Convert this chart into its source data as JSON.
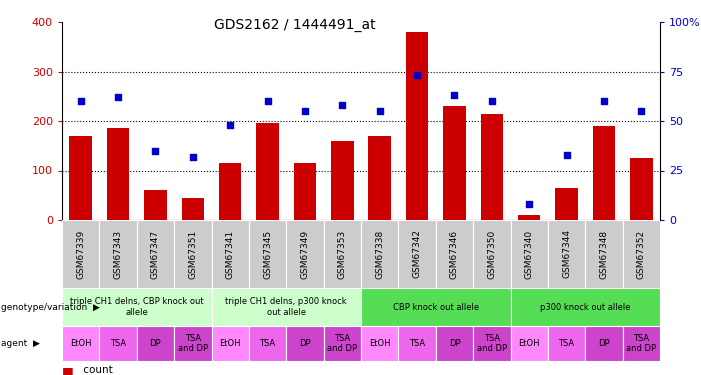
{
  "title": "GDS2162 / 1444491_at",
  "samples": [
    "GSM67339",
    "GSM67343",
    "GSM67347",
    "GSM67351",
    "GSM67341",
    "GSM67345",
    "GSM67349",
    "GSM67353",
    "GSM67338",
    "GSM67342",
    "GSM67346",
    "GSM67350",
    "GSM67340",
    "GSM67344",
    "GSM67348",
    "GSM67352"
  ],
  "counts": [
    170,
    185,
    60,
    45,
    115,
    195,
    115,
    160,
    170,
    380,
    230,
    215,
    10,
    65,
    190,
    125
  ],
  "percentiles": [
    60,
    62,
    35,
    32,
    48,
    60,
    55,
    58,
    55,
    73,
    63,
    60,
    8,
    33,
    60,
    55
  ],
  "ylim_left": [
    0,
    400
  ],
  "ylim_right": [
    0,
    100
  ],
  "yticks_left": [
    0,
    100,
    200,
    300,
    400
  ],
  "yticks_right": [
    0,
    25,
    50,
    75,
    100
  ],
  "bar_color": "#cc0000",
  "dot_color": "#0000cc",
  "groups": [
    {
      "label": "triple CH1 delns, CBP knock out\nallele",
      "start": 0,
      "end": 4,
      "color": "#ccffcc"
    },
    {
      "label": "triple CH1 delns, p300 knock\nout allele",
      "start": 4,
      "end": 8,
      "color": "#ccffcc"
    },
    {
      "label": "CBP knock out allele",
      "start": 8,
      "end": 12,
      "color": "#55dd55"
    },
    {
      "label": "p300 knock out allele",
      "start": 12,
      "end": 16,
      "color": "#55dd55"
    }
  ],
  "agents": [
    "EtOH",
    "TSA",
    "DP",
    "TSA\nand DP",
    "EtOH",
    "TSA",
    "DP",
    "TSA\nand DP",
    "EtOH",
    "TSA",
    "DP",
    "TSA\nand DP",
    "EtOH",
    "TSA",
    "DP",
    "TSA\nand DP"
  ],
  "agent_colors": [
    "#ff88ff",
    "#ee66ee",
    "#cc44cc",
    "#cc44cc",
    "#ff88ff",
    "#ee66ee",
    "#cc44cc",
    "#cc44cc",
    "#ff88ff",
    "#ee66ee",
    "#cc44cc",
    "#cc44cc",
    "#ff88ff",
    "#ee66ee",
    "#cc44cc",
    "#cc44cc"
  ],
  "tick_color_left": "#cc0000",
  "tick_color_right": "#0000cc"
}
